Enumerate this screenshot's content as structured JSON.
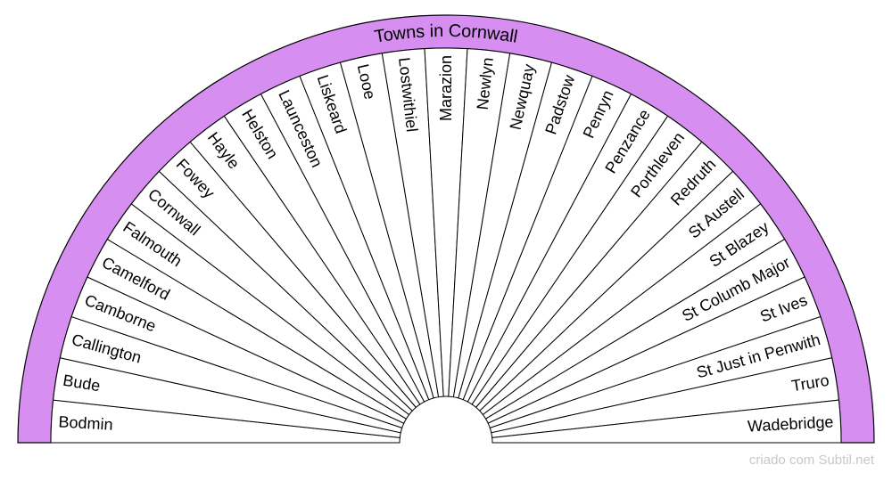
{
  "title": "Towns in Cornwall",
  "credit": "criado com Subtil.net",
  "colors": {
    "ring_fill": "#d68ff0",
    "stroke": "#000000",
    "segment_fill": "#ffffff",
    "credit_text": "#c8c8c8"
  },
  "chart_data": {
    "type": "pie",
    "title": "Towns in Cornwall",
    "categories": [
      "Bodmin",
      "Bude",
      "Callington",
      "Camborne",
      "Camelford",
      "Falmouth",
      "Cornwall",
      "Fowey",
      "Hayle",
      "Helston",
      "Launceston",
      "Liskeard",
      "Looe",
      "Lostwithiel",
      "Marazion",
      "Newlyn",
      "Newquay",
      "Padstow",
      "Penryn",
      "Penzance",
      "Porthleven",
      "Redruth",
      "St Austell",
      "St Blazey",
      "St Columb Major",
      "St Ives",
      "St Just in Penwith",
      "Truro",
      "Wadebridge"
    ],
    "values": [
      1,
      1,
      1,
      1,
      1,
      1,
      1,
      1,
      1,
      1,
      1,
      1,
      1,
      1,
      1,
      1,
      1,
      1,
      1,
      1,
      1,
      1,
      1,
      1,
      1,
      1,
      1,
      1,
      1
    ]
  }
}
